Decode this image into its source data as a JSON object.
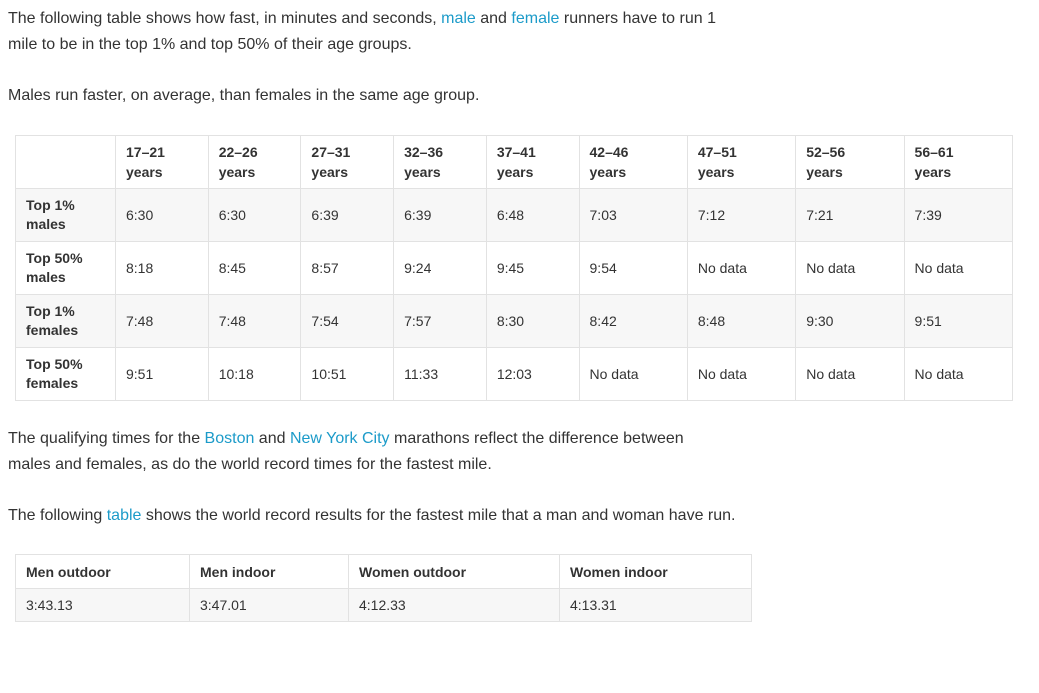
{
  "intro": {
    "part1": "The following table shows how fast, in minutes and seconds, ",
    "male_link": "male",
    "and": " and ",
    "female_link": "female",
    "part2": " runners have to run 1 mile to be in the top 1% and top 50% of their age groups."
  },
  "note": "Males run faster, on average, than females in the same age group.",
  "age_table": {
    "headers": [
      [
        "17–21",
        "years"
      ],
      [
        "22–26",
        "years"
      ],
      [
        "27–31",
        "years"
      ],
      [
        "32–36",
        "years"
      ],
      [
        "37–41",
        "years"
      ],
      [
        "42–46",
        "years"
      ],
      [
        "47–51",
        "years"
      ],
      [
        "52–56",
        "years"
      ],
      [
        "56–61",
        "years"
      ]
    ],
    "rows": [
      {
        "label": [
          "Top 1%",
          "males"
        ],
        "values": [
          "6:30",
          "6:30",
          "6:39",
          "6:39",
          "6:48",
          "7:03",
          "7:12",
          "7:21",
          "7:39"
        ]
      },
      {
        "label": [
          "Top 50%",
          "males"
        ],
        "values": [
          "8:18",
          "8:45",
          "8:57",
          "9:24",
          "9:45",
          "9:54",
          "No data",
          "No data",
          "No data"
        ]
      },
      {
        "label": [
          "Top 1%",
          "females"
        ],
        "values": [
          "7:48",
          "7:48",
          "7:54",
          "7:57",
          "8:30",
          "8:42",
          "8:48",
          "9:30",
          "9:51"
        ]
      },
      {
        "label": [
          "Top 50%",
          "females"
        ],
        "values": [
          "9:51",
          "10:18",
          "10:51",
          "11:33",
          "12:03",
          "No data",
          "No data",
          "No data",
          "No data"
        ]
      }
    ]
  },
  "qualifying": {
    "part1": "The qualifying times for the ",
    "boston_link": "Boston",
    "and": " and ",
    "nyc_link": "New York City",
    "part2": " marathons reflect the difference between males and females, as do the world record times for the fastest mile."
  },
  "records_intro": {
    "part1": "The following ",
    "table_link": "table",
    "part2": " shows the world record results for the fastest mile that a man and woman have run."
  },
  "record_table": {
    "headers": [
      "Men outdoor",
      "Men indoor",
      "Women outdoor",
      "Women indoor"
    ],
    "values": [
      "3:43.13",
      "3:47.01",
      "4:12.33",
      "4:13.31"
    ]
  },
  "colors": {
    "link": "#1c9bc9",
    "text": "#333333",
    "row_alt": "#f7f7f7",
    "border": "#e2e2e2"
  }
}
